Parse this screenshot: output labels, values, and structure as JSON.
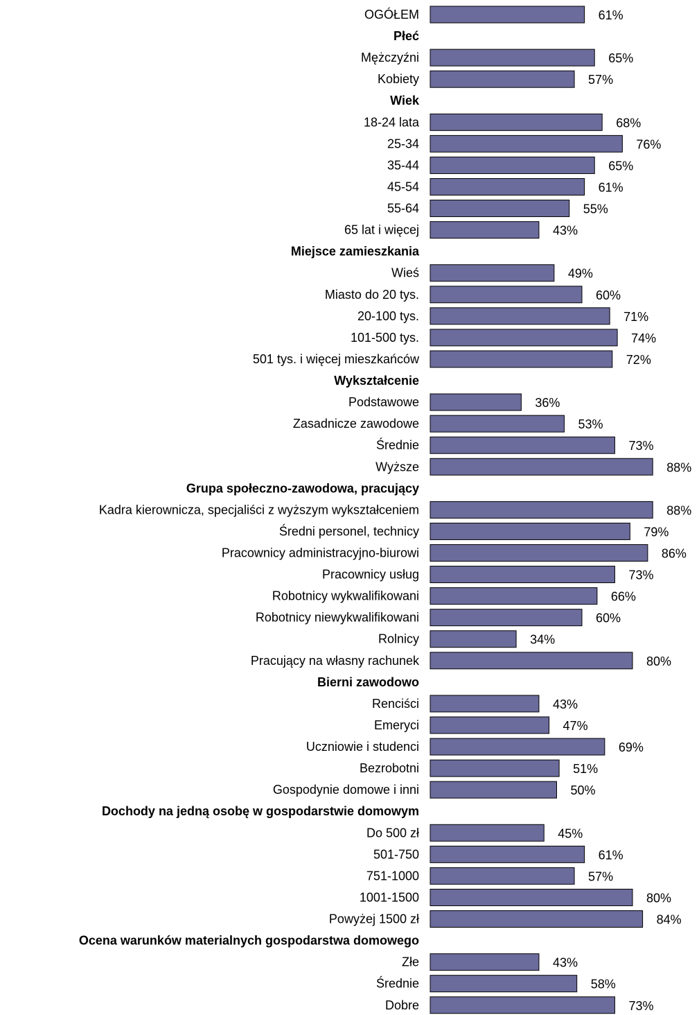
{
  "chart_data": {
    "type": "bar",
    "orientation": "horizontal",
    "unit": "%",
    "bar_color": "#6b6b9c",
    "bar_border_color": "#000000",
    "xlim": [
      0,
      100
    ],
    "grid": false,
    "rows": [
      {
        "kind": "item",
        "label": "OGÓŁEM",
        "value": 61,
        "value_label": "61%"
      },
      {
        "kind": "group",
        "label": "Płeć"
      },
      {
        "kind": "item",
        "label": "Mężczyźni",
        "value": 65,
        "value_label": "65%"
      },
      {
        "kind": "item",
        "label": "Kobiety",
        "value": 57,
        "value_label": "57%"
      },
      {
        "kind": "group",
        "label": "Wiek"
      },
      {
        "kind": "item",
        "label": "18-24 lata",
        "value": 68,
        "value_label": "68%"
      },
      {
        "kind": "item",
        "label": "25-34",
        "value": 76,
        "value_label": "76%"
      },
      {
        "kind": "item",
        "label": "35-44",
        "value": 65,
        "value_label": "65%"
      },
      {
        "kind": "item",
        "label": "45-54",
        "value": 61,
        "value_label": "61%"
      },
      {
        "kind": "item",
        "label": "55-64",
        "value": 55,
        "value_label": "55%"
      },
      {
        "kind": "item",
        "label": "65 lat i więcej",
        "value": 43,
        "value_label": "43%"
      },
      {
        "kind": "group",
        "label": "Miejsce zamieszkania"
      },
      {
        "kind": "item",
        "label": "Wieś",
        "value": 49,
        "value_label": "49%"
      },
      {
        "kind": "item",
        "label": "Miasto do 20 tys.",
        "value": 60,
        "value_label": "60%"
      },
      {
        "kind": "item",
        "label": "20-100 tys.",
        "value": 71,
        "value_label": "71%"
      },
      {
        "kind": "item",
        "label": "101-500 tys.",
        "value": 74,
        "value_label": "74%"
      },
      {
        "kind": "item",
        "label": "501 tys. i więcej mieszkańców",
        "value": 72,
        "value_label": "72%"
      },
      {
        "kind": "group",
        "label": "Wykształcenie"
      },
      {
        "kind": "item",
        "label": "Podstawowe",
        "value": 36,
        "value_label": "36%"
      },
      {
        "kind": "item",
        "label": "Zasadnicze zawodowe",
        "value": 53,
        "value_label": "53%"
      },
      {
        "kind": "item",
        "label": "Średnie",
        "value": 73,
        "value_label": "73%"
      },
      {
        "kind": "item",
        "label": "Wyższe",
        "value": 88,
        "value_label": "88%"
      },
      {
        "kind": "group",
        "label": "Grupa społeczno-zawodowa, pracujący"
      },
      {
        "kind": "item",
        "label": "Kadra kierownicza, specjaliści z wyższym wykształceniem",
        "value": 88,
        "value_label": "88%"
      },
      {
        "kind": "item",
        "label": "Średni personel, technicy",
        "value": 79,
        "value_label": "79%"
      },
      {
        "kind": "item",
        "label": "Pracownicy administracyjno-biurowi",
        "value": 86,
        "value_label": "86%"
      },
      {
        "kind": "item",
        "label": "Pracownicy usług",
        "value": 73,
        "value_label": "73%"
      },
      {
        "kind": "item",
        "label": "Robotnicy wykwalifikowani",
        "value": 66,
        "value_label": "66%"
      },
      {
        "kind": "item",
        "label": "Robotnicy niewykwalifikowani",
        "value": 60,
        "value_label": "60%"
      },
      {
        "kind": "item",
        "label": "Rolnicy",
        "value": 34,
        "value_label": "34%"
      },
      {
        "kind": "item",
        "label": "Pracujący na własny rachunek",
        "value": 80,
        "value_label": "80%"
      },
      {
        "kind": "group",
        "label": "Bierni zawodowo"
      },
      {
        "kind": "item",
        "label": "Renciści",
        "value": 43,
        "value_label": "43%"
      },
      {
        "kind": "item",
        "label": "Emeryci",
        "value": 47,
        "value_label": "47%"
      },
      {
        "kind": "item",
        "label": "Uczniowie i studenci",
        "value": 69,
        "value_label": "69%"
      },
      {
        "kind": "item",
        "label": "Bezrobotni",
        "value": 51,
        "value_label": "51%"
      },
      {
        "kind": "item",
        "label": "Gospodynie domowe i inni",
        "value": 50,
        "value_label": "50%"
      },
      {
        "kind": "group",
        "label": "Dochody na jedną osobę w gospodarstwie domowym"
      },
      {
        "kind": "item",
        "label": "Do 500 zł",
        "value": 45,
        "value_label": "45%"
      },
      {
        "kind": "item",
        "label": "501-750",
        "value": 61,
        "value_label": "61%"
      },
      {
        "kind": "item",
        "label": "751-1000",
        "value": 57,
        "value_label": "57%"
      },
      {
        "kind": "item",
        "label": "1001-1500",
        "value": 80,
        "value_label": "80%"
      },
      {
        "kind": "item",
        "label": "Powyżej 1500 zł",
        "value": 84,
        "value_label": "84%"
      },
      {
        "kind": "group",
        "label": "Ocena warunków materialnych gospodarstwa domowego"
      },
      {
        "kind": "item",
        "label": "Złe",
        "value": 43,
        "value_label": "43%"
      },
      {
        "kind": "item",
        "label": "Średnie",
        "value": 58,
        "value_label": "58%"
      },
      {
        "kind": "item",
        "label": "Dobre",
        "value": 73,
        "value_label": "73%"
      }
    ]
  }
}
